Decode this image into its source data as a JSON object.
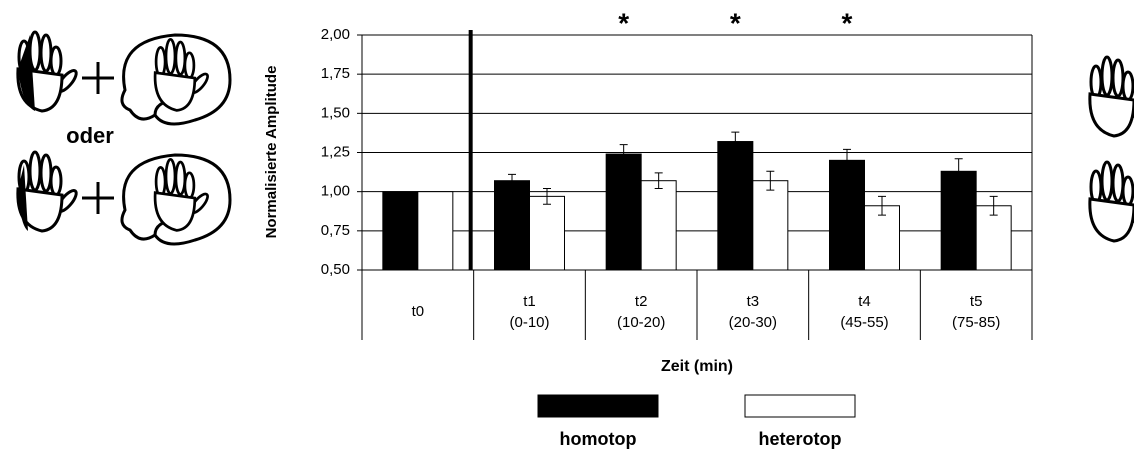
{
  "chart_data": {
    "type": "bar",
    "y_label": "Normalisierte Amplitude",
    "x_label": "Zeit (min)",
    "categories": [
      [
        "t0"
      ],
      [
        "t1",
        "(0-10)"
      ],
      [
        "t2",
        "(10-20)"
      ],
      [
        "t3",
        "(20-30)"
      ],
      [
        "t4",
        "(45-55)"
      ],
      [
        "t5",
        "(75-85)"
      ]
    ],
    "series": [
      {
        "name": "homotop",
        "color": "#000000",
        "values": [
          1.0,
          1.07,
          1.24,
          1.32,
          1.2,
          1.13
        ],
        "errors": [
          null,
          0.04,
          0.06,
          0.06,
          0.07,
          0.08
        ]
      },
      {
        "name": "heterotop",
        "color": "#ffffff",
        "values": [
          1.0,
          0.97,
          1.07,
          1.07,
          0.91,
          0.91
        ],
        "errors": [
          null,
          0.05,
          0.05,
          0.06,
          0.06,
          0.06
        ]
      }
    ],
    "significance": [
      null,
      null,
      "*",
      "*",
      "*",
      null
    ],
    "ylim": [
      0.5,
      2.0
    ],
    "yticks": [
      {
        "value": 0.5,
        "label": "0,50"
      },
      {
        "value": 0.75,
        "label": "0,75"
      },
      {
        "value": 1.0,
        "label": "1,00"
      },
      {
        "value": 1.25,
        "label": "1,25"
      },
      {
        "value": 1.5,
        "label": "1,50"
      },
      {
        "value": 1.75,
        "label": "1,75"
      },
      {
        "value": 2.0,
        "label": "2,00"
      }
    ],
    "grid": true
  },
  "illustration": {
    "label": "oder"
  }
}
